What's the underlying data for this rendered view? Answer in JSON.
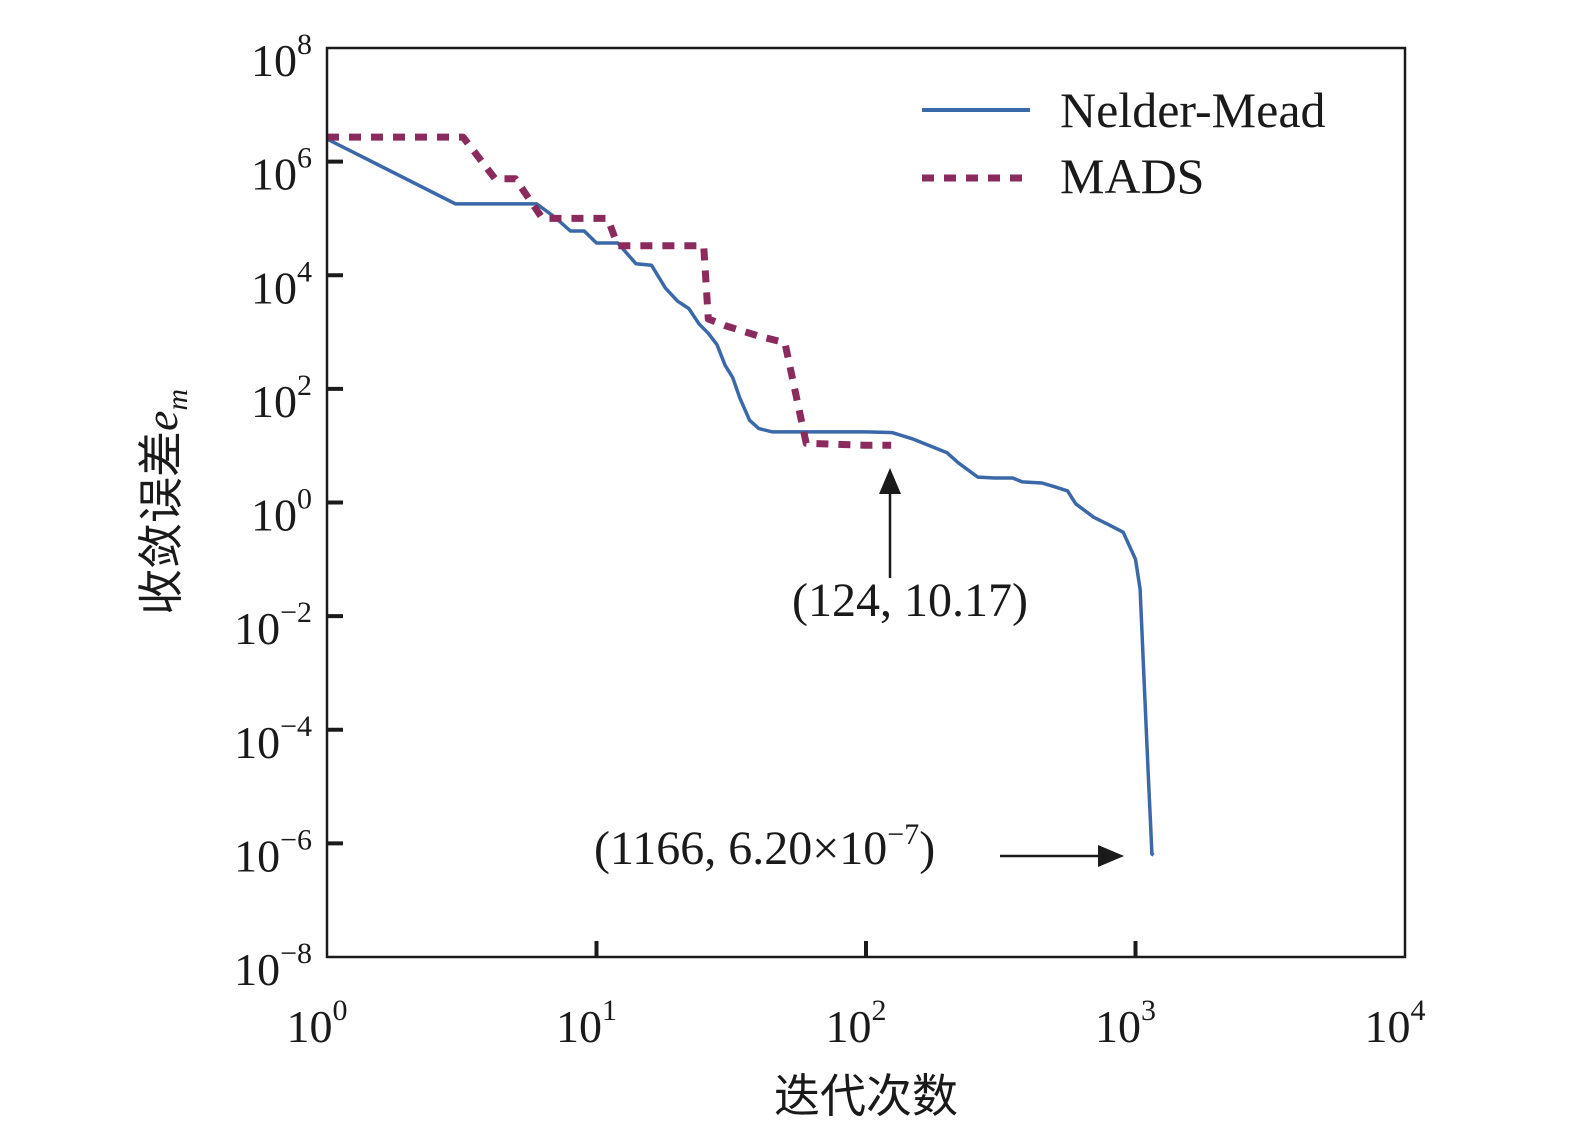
{
  "chart_data": {
    "type": "line",
    "xlabel": "迭代次数",
    "ylabel": "收敛误差",
    "ylabel_symbol": "e",
    "ylabel_subscript": "m",
    "x_scale": "log",
    "y_scale": "log",
    "xlim": [
      1,
      10000
    ],
    "ylim": [
      1e-08,
      100000000.0
    ],
    "grid": false,
    "legend_position": "top-right",
    "x_ticks": [
      {
        "base": "10",
        "exp": "0",
        "value": 1
      },
      {
        "base": "10",
        "exp": "1",
        "value": 10
      },
      {
        "base": "10",
        "exp": "2",
        "value": 100
      },
      {
        "base": "10",
        "exp": "3",
        "value": 1000
      },
      {
        "base": "10",
        "exp": "4",
        "value": 10000
      }
    ],
    "y_ticks": [
      {
        "base": "10",
        "exp": "8",
        "value": 100000000.0
      },
      {
        "base": "10",
        "exp": "6",
        "value": 1000000.0
      },
      {
        "base": "10",
        "exp": "4",
        "value": 10000.0
      },
      {
        "base": "10",
        "exp": "2",
        "value": 100
      },
      {
        "base": "10",
        "exp": "0",
        "value": 1
      },
      {
        "base": "10",
        "exp": "−2",
        "value": 0.01
      },
      {
        "base": "10",
        "exp": "−4",
        "value": 0.0001
      },
      {
        "base": "10",
        "exp": "−6",
        "value": 1e-06
      },
      {
        "base": "10",
        "exp": "−8",
        "value": 1e-08
      }
    ],
    "series": [
      {
        "name": "Nelder-Mead",
        "color": "#3a68a8",
        "style": "solid",
        "points": [
          [
            1,
            2500000.0
          ],
          [
            3,
            180000.0
          ],
          [
            6,
            180000.0
          ],
          [
            7,
            105000.0
          ],
          [
            8,
            60000.0
          ],
          [
            9,
            60000.0
          ],
          [
            10,
            37000.0
          ],
          [
            12,
            37000.0
          ],
          [
            14,
            16000.0
          ],
          [
            16,
            15000.0
          ],
          [
            18,
            6000.0
          ],
          [
            20,
            3500.0
          ],
          [
            22,
            2600.0
          ],
          [
            24,
            1400.0
          ],
          [
            26,
            950
          ],
          [
            28,
            600
          ],
          [
            30,
            260
          ],
          [
            32,
            160
          ],
          [
            34,
            70
          ],
          [
            37,
            28
          ],
          [
            40,
            20
          ],
          [
            45,
            17.5
          ],
          [
            60,
            17.5
          ],
          [
            100,
            17.5
          ],
          [
            125,
            17
          ],
          [
            150,
            13
          ],
          [
            200,
            7.5
          ],
          [
            220,
            5
          ],
          [
            260,
            2.8
          ],
          [
            300,
            2.7
          ],
          [
            350,
            2.7
          ],
          [
            380,
            2.3
          ],
          [
            450,
            2.2
          ],
          [
            500,
            1.9
          ],
          [
            560,
            1.6
          ],
          [
            600,
            0.95
          ],
          [
            700,
            0.55
          ],
          [
            800,
            0.4
          ],
          [
            900,
            0.3
          ],
          [
            1000,
            0.1
          ],
          [
            1040,
            0.03
          ],
          [
            1080,
            0.0005
          ],
          [
            1120,
            1e-05
          ],
          [
            1140,
            1.8e-06
          ],
          [
            1150,
            6.5e-07
          ],
          [
            1166,
            6.2e-07
          ]
        ]
      },
      {
        "name": "MADS",
        "color": "#8b2a5c",
        "style": "dotted",
        "points": [
          [
            1,
            2700000.0
          ],
          [
            3.2,
            2700000.0
          ],
          [
            4.2,
            500000.0
          ],
          [
            5,
            500000.0
          ],
          [
            6.3,
            100000.0
          ],
          [
            8,
            100000.0
          ],
          [
            11,
            100000.0
          ],
          [
            12,
            33000.0
          ],
          [
            16,
            33000.0
          ],
          [
            25,
            33000.0
          ],
          [
            26,
            1700.0
          ],
          [
            30,
            1300.0
          ],
          [
            40,
            850
          ],
          [
            50,
            650
          ],
          [
            60,
            11
          ],
          [
            100,
            10.17
          ],
          [
            124,
            10.17
          ]
        ]
      }
    ],
    "annotations": [
      {
        "text": "(124, 10.17)",
        "x": 124,
        "y": 10.17
      },
      {
        "text_main": "(1166, 6.20×10",
        "text_exp": "−7",
        "text_end": ")",
        "x": 1166,
        "y": 6.2e-07
      }
    ]
  }
}
